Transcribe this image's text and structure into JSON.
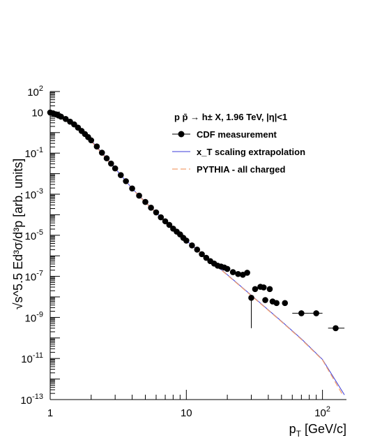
{
  "chart_data": {
    "type": "scatter",
    "title": "",
    "xlabel": "p",
    "xlabel_sub": "T",
    "xlabel_unit": " [GeV/c]",
    "ylabel": "√s^5.5 Ed³σ/d³p [arb. units]",
    "x_scale": "log",
    "y_scale": "log",
    "xlim": [
      1,
      150
    ],
    "ylim": [
      1e-13,
      100
    ],
    "x_ticks": [
      {
        "value": 1,
        "label": "1",
        "sup": ""
      },
      {
        "value": 10,
        "label": "10",
        "sup": ""
      },
      {
        "value": 100,
        "label": "10",
        "sup": "2"
      }
    ],
    "y_ticks": [
      {
        "value": 100,
        "label": "10",
        "sup": "2"
      },
      {
        "value": 10,
        "label": "10",
        "sup": ""
      },
      {
        "value": 0.1,
        "label": "10",
        "sup": "-1"
      },
      {
        "value": 0.001,
        "label": "10",
        "sup": "-3"
      },
      {
        "value": 1e-05,
        "label": "10",
        "sup": "-5"
      },
      {
        "value": 1e-07,
        "label": "10",
        "sup": "-7"
      },
      {
        "value": 1e-09,
        "label": "10",
        "sup": "-9"
      },
      {
        "value": 1e-11,
        "label": "10",
        "sup": "-11"
      },
      {
        "value": 1e-13,
        "label": "10",
        "sup": "-13"
      }
    ],
    "grid": false,
    "legend": {
      "header": "p p̄ → h± X, 1.96 TeV, |η|<1",
      "placement": "top-right",
      "entries": [
        "CDF measurement",
        "x_T scaling extrapolation",
        "PYTHIA - all charged"
      ]
    },
    "colors": {
      "cdf": "#000000",
      "xt": "#3b3bd9",
      "pythia": "#f4a070"
    },
    "series": [
      {
        "name": "CDF measurement",
        "kind": "points",
        "points": [
          {
            "x": 1.0,
            "y": 9.5
          },
          {
            "x": 1.05,
            "y": 8.7
          },
          {
            "x": 1.1,
            "y": 7.7
          },
          {
            "x": 1.15,
            "y": 6.8
          },
          {
            "x": 1.2,
            "y": 6.0
          },
          {
            "x": 1.3,
            "y": 4.6
          },
          {
            "x": 1.4,
            "y": 3.4
          },
          {
            "x": 1.5,
            "y": 2.5
          },
          {
            "x": 1.6,
            "y": 1.75
          },
          {
            "x": 1.7,
            "y": 1.2
          },
          {
            "x": 1.8,
            "y": 0.85
          },
          {
            "x": 1.9,
            "y": 0.6
          },
          {
            "x": 2.0,
            "y": 0.42
          },
          {
            "x": 2.2,
            "y": 0.21
          },
          {
            "x": 2.4,
            "y": 0.105
          },
          {
            "x": 2.6,
            "y": 0.056
          },
          {
            "x": 2.8,
            "y": 0.031
          },
          {
            "x": 3.0,
            "y": 0.018
          },
          {
            "x": 3.3,
            "y": 0.0085
          },
          {
            "x": 3.6,
            "y": 0.0043
          },
          {
            "x": 4.0,
            "y": 0.0019
          },
          {
            "x": 4.5,
            "y": 0.00085
          },
          {
            "x": 5.0,
            "y": 0.00042
          },
          {
            "x": 5.5,
            "y": 0.00022
          },
          {
            "x": 6.0,
            "y": 0.00013
          },
          {
            "x": 6.5,
            "y": 7.5e-05
          },
          {
            "x": 7.0,
            "y": 4.8e-05
          },
          {
            "x": 7.5,
            "y": 3.2e-05
          },
          {
            "x": 8.0,
            "y": 2.1e-05
          },
          {
            "x": 8.5,
            "y": 1.5e-05
          },
          {
            "x": 9.0,
            "y": 1.1e-05
          },
          {
            "x": 9.5,
            "y": 7.5e-06
          },
          {
            "x": 10.0,
            "y": 5.5e-06
          },
          {
            "x": 11.0,
            "y": 3.2e-06
          },
          {
            "x": 12.0,
            "y": 2e-06
          },
          {
            "x": 13.0,
            "y": 1.2e-06
          },
          {
            "x": 14.0,
            "y": 8e-07
          },
          {
            "x": 15.0,
            "y": 5.5e-07
          },
          {
            "x": 16.0,
            "y": 4.2e-07
          },
          {
            "x": 17.0,
            "y": 3.3e-07
          },
          {
            "x": 18.0,
            "y": 3e-07
          },
          {
            "x": 19.0,
            "y": 2.7e-07
          },
          {
            "x": 20.0,
            "y": 2.3e-07
          },
          {
            "x": 22.0,
            "y": 1.6e-07
          },
          {
            "x": 24.0,
            "y": 1.3e-07
          },
          {
            "x": 26.0,
            "y": 1.2e-07
          },
          {
            "x": 28.0,
            "y": 1.5e-07
          },
          {
            "x": 30.0,
            "y": 9e-09,
            "ylow": 3e-10
          },
          {
            "x": 32.0,
            "y": 2.4e-08
          },
          {
            "x": 35.0,
            "y": 3.1e-08
          },
          {
            "x": 37.0,
            "y": 2.9e-08
          },
          {
            "x": 38.0,
            "y": 7e-09
          },
          {
            "x": 41.0,
            "y": 2.4e-08
          },
          {
            "x": 43.0,
            "y": 6e-09
          },
          {
            "x": 46.0,
            "y": 5e-09
          },
          {
            "x": 53.0,
            "y": 5e-09
          },
          {
            "x": 70.0,
            "y": 1.6e-09,
            "xlow": 60.0,
            "xhigh": 80.0
          },
          {
            "x": 90.0,
            "y": 1.6e-09,
            "xlow": 80.0,
            "xhigh": 100.0
          },
          {
            "x": 125.0,
            "y": 3e-10,
            "xlow": 110.0,
            "xhigh": 145.0
          }
        ]
      },
      {
        "name": "x_T scaling extrapolation",
        "kind": "line",
        "points": [
          {
            "x": 1.0,
            "y": 9.5
          },
          {
            "x": 1.2,
            "y": 6.0
          },
          {
            "x": 1.5,
            "y": 2.5
          },
          {
            "x": 2.0,
            "y": 0.42
          },
          {
            "x": 2.5,
            "y": 0.075
          },
          {
            "x": 3.0,
            "y": 0.018
          },
          {
            "x": 4.0,
            "y": 0.0019
          },
          {
            "x": 5.0,
            "y": 0.00042
          },
          {
            "x": 7.0,
            "y": 4.8e-05
          },
          {
            "x": 10.0,
            "y": 5.5e-06
          },
          {
            "x": 15.0,
            "y": 6e-07
          },
          {
            "x": 20.0,
            "y": 1.2e-07
          },
          {
            "x": 30.0,
            "y": 1.2e-08
          },
          {
            "x": 50.0,
            "y": 6.5e-10
          },
          {
            "x": 70.0,
            "y": 9e-11
          },
          {
            "x": 100.0,
            "y": 9e-12
          },
          {
            "x": 145.0,
            "y": 1.7e-13
          }
        ]
      },
      {
        "name": "PYTHIA - all charged",
        "kind": "line",
        "points": [
          {
            "x": 1.0,
            "y": 8.0
          },
          {
            "x": 1.2,
            "y": 5.2
          },
          {
            "x": 1.5,
            "y": 2.2
          },
          {
            "x": 2.0,
            "y": 0.38
          },
          {
            "x": 2.5,
            "y": 0.07
          },
          {
            "x": 3.0,
            "y": 0.017
          },
          {
            "x": 4.0,
            "y": 0.0018
          },
          {
            "x": 5.0,
            "y": 0.0004
          },
          {
            "x": 7.0,
            "y": 4.6e-05
          },
          {
            "x": 10.0,
            "y": 5.3e-06
          },
          {
            "x": 15.0,
            "y": 5.8e-07
          },
          {
            "x": 20.0,
            "y": 1.15e-07
          },
          {
            "x": 30.0,
            "y": 1.15e-08
          },
          {
            "x": 50.0,
            "y": 6.2e-10
          },
          {
            "x": 70.0,
            "y": 8.5e-11
          },
          {
            "x": 100.0,
            "y": 8.5e-12
          },
          {
            "x": 140.0,
            "y": 1.8e-13
          }
        ]
      }
    ]
  }
}
